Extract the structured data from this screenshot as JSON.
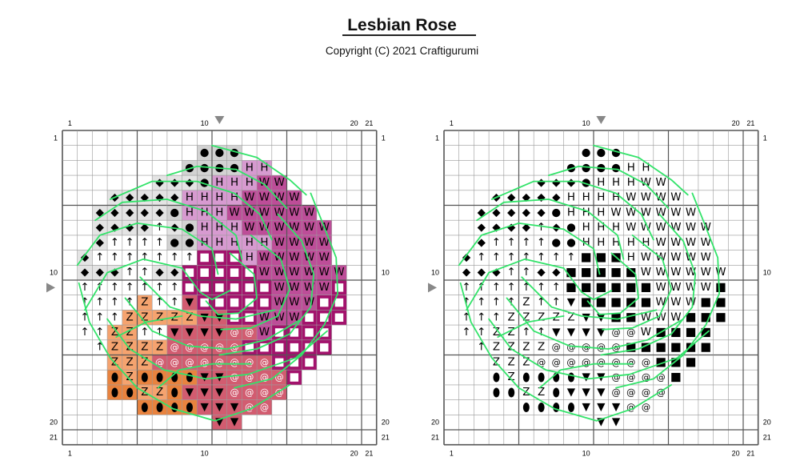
{
  "header": {
    "title": "Lesbian Rose",
    "copyright": "Copyright (C) 2021 Craftigurumi"
  },
  "pattern": {
    "grid_size": 21,
    "axis_labels": [
      "1",
      "10",
      "20",
      "21"
    ],
    "center_marker": 10,
    "colors": {
      "Z": "#f5a36f",
      "e": "#e8833f",
      "V": "#d25c70",
      "@": "#d25c70",
      "S": "#a3126c",
      "W": "#bd4d98",
      "H": "#d79ad0",
      "o": "#d2d2d2",
      "D": "#e4e4e4",
      "^": "#ffffff"
    },
    "symbols": {
      "o": "●",
      "D": "◆",
      "^": "↑",
      "e": "⬮",
      "V": "▼",
      "S": "■",
      "Z": "Z",
      "H": "H",
      "W": "W",
      "@": "@"
    },
    "rows": [
      ".....................",
      ".........ooo.........",
      "........ooooHH.......",
      "......DDDoHHHWW......",
      "...DDDDDHHHHWWWW.....",
      "..DDDDDoHHHWWWWWW....",
      "..DDDD^DoHHHWWWWWW...",
      "..D^^^^ooHHHHHWWWW...",
      ".D^^^^^^^SSSHWWWWW...",
      ".DDD^^DDSSSSSWWWWWW..",
      ".^^^^^^^SSSSSSWWWWS..",
      ".^^^^Z^^VSSSSSWWWSS..",
      ".^^^ZZZZZVVSSWWWSSS..",
      ".^^ZZ^^VVVV@@WSSSS...",
      "..^ZZZZ@@@@@SSSSSS...",
      "...ZZZ@@@@@@@@SSS....",
      "...eZeeeeVV@@@@S.....",
      "...eeZZeVVV@@@@......",
      ".....eeeeVVV@@.......",
      "..........VV.........",
      "....................."
    ],
    "outline_strokes": [
      [
        [
          10,
          1
        ],
        [
          13,
          1.8
        ],
        [
          15.2,
          3.3
        ],
        [
          16.3,
          4.3
        ]
      ],
      [
        [
          7,
          3
        ],
        [
          9,
          2.4
        ],
        [
          11.6,
          2.6
        ],
        [
          13.5,
          3.6
        ],
        [
          15,
          5.2
        ]
      ],
      [
        [
          3.2,
          4.6
        ],
        [
          6,
          3.4
        ],
        [
          9,
          3.4
        ],
        [
          11.5,
          4.2
        ],
        [
          13.2,
          5.6
        ],
        [
          14,
          7.3
        ]
      ],
      [
        [
          2.2,
          6
        ],
        [
          4,
          4.8
        ],
        [
          7,
          4.6
        ],
        [
          9.6,
          5.4
        ],
        [
          11.6,
          7
        ],
        [
          12,
          8.6
        ]
      ],
      [
        [
          1,
          9
        ],
        [
          2.5,
          7
        ],
        [
          5,
          6.2
        ],
        [
          8,
          6.6
        ],
        [
          10,
          7.9
        ],
        [
          10.4,
          9.6
        ]
      ],
      [
        [
          1.5,
          12
        ],
        [
          3,
          9.5
        ],
        [
          5.4,
          8.6
        ],
        [
          8,
          9.2
        ],
        [
          9.2,
          10.8
        ],
        [
          10,
          11.3
        ],
        [
          11.2,
          10.7
        ]
      ],
      [
        [
          16.6,
          4.2
        ],
        [
          17.4,
          6.2
        ],
        [
          18.3,
          8.5
        ],
        [
          18.4,
          10.9
        ],
        [
          17.5,
          13
        ],
        [
          16,
          15
        ],
        [
          14,
          16.6
        ],
        [
          11.5,
          17.2
        ]
      ],
      [
        [
          14.4,
          5.6
        ],
        [
          16,
          7.4
        ],
        [
          16.8,
          9.6
        ],
        [
          16.6,
          11.8
        ],
        [
          15.2,
          13.6
        ],
        [
          13,
          14.6
        ],
        [
          10.5,
          15
        ]
      ],
      [
        [
          12.6,
          7
        ],
        [
          14.6,
          8.6
        ],
        [
          15.2,
          10.6
        ],
        [
          14.4,
          12.4
        ],
        [
          12.6,
          13.2
        ],
        [
          10.6,
          13.3
        ]
      ],
      [
        [
          11.2,
          8.2
        ],
        [
          12.8,
          9.6
        ],
        [
          13,
          11.2
        ],
        [
          11.8,
          12.2
        ],
        [
          10.4,
          12.3
        ],
        [
          9.6,
          11.4
        ]
      ],
      [
        [
          1.1,
          10.2
        ],
        [
          1.8,
          12.8
        ],
        [
          3.2,
          15.2
        ],
        [
          5,
          17.2
        ],
        [
          7.4,
          18.6
        ],
        [
          10.2,
          19.4
        ],
        [
          12.6,
          18.6
        ],
        [
          15.2,
          17
        ]
      ],
      [
        [
          3,
          12.6
        ],
        [
          4.5,
          14.6
        ],
        [
          6.8,
          16
        ],
        [
          9.6,
          16.6
        ],
        [
          12.4,
          16.3
        ],
        [
          15.6,
          15.2
        ],
        [
          17.7,
          13.4
        ]
      ],
      [
        [
          4.2,
          11.2
        ],
        [
          6,
          13.4
        ],
        [
          8.4,
          14.4
        ],
        [
          11,
          14.6
        ],
        [
          13.6,
          14
        ],
        [
          16,
          12.6
        ]
      ],
      [
        [
          5.2,
          9.8
        ],
        [
          7.2,
          11.8
        ],
        [
          9.2,
          12.4
        ],
        [
          11.6,
          12.6
        ],
        [
          14.2,
          12
        ]
      ],
      [
        [
          3.6,
          13.8
        ],
        [
          5.6,
          12.8
        ],
        [
          8,
          12.4
        ]
      ],
      [
        [
          6.4,
          17.2
        ],
        [
          7.8,
          16
        ],
        [
          10,
          15.6
        ],
        [
          12.6,
          15.6
        ]
      ]
    ]
  }
}
